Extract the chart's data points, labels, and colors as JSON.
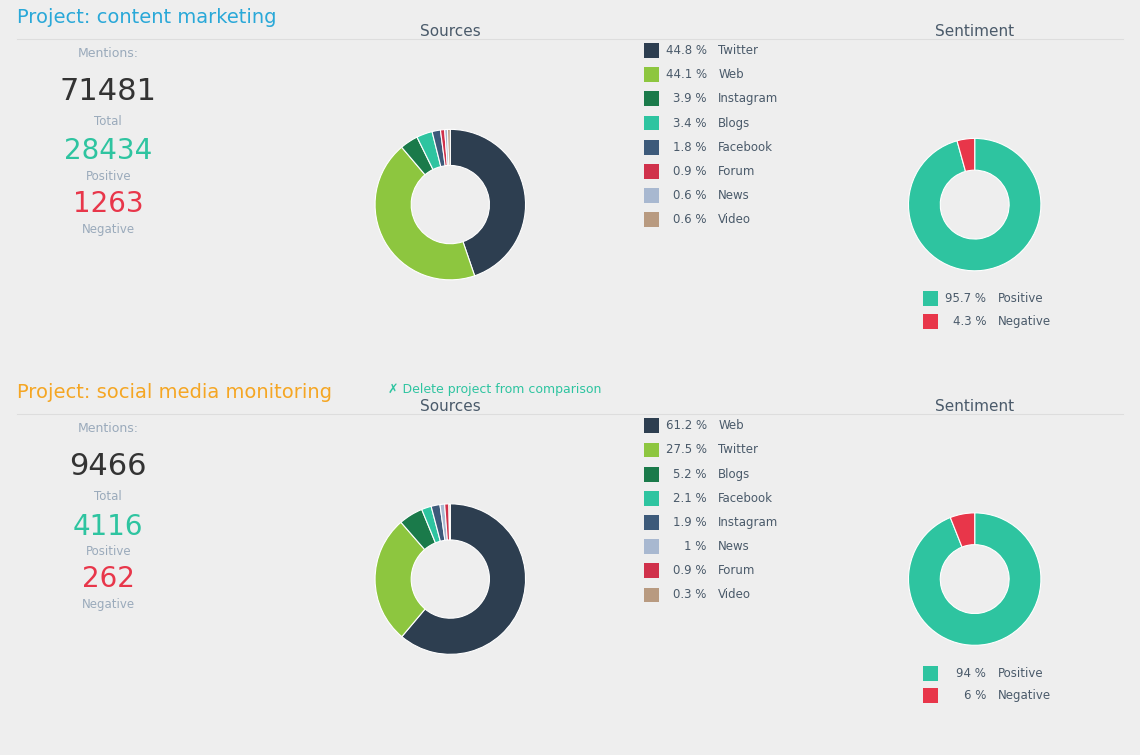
{
  "project1": {
    "title": "Project: content marketing",
    "title_color": "#29a8d8",
    "total": "71481",
    "positive": "28434",
    "negative": "1263",
    "sources_title": "Sources",
    "sources_values": [
      44.8,
      44.1,
      3.9,
      3.4,
      1.8,
      0.9,
      0.6,
      0.6
    ],
    "sources_labels": [
      "Twitter",
      "Web",
      "Instagram",
      "Blogs",
      "Facebook",
      "Forum",
      "News",
      "Video"
    ],
    "sources_percents": [
      "44.8 %",
      "44.1 %",
      "3.9 %",
      "3.4 %",
      "1.8 %",
      "0.9 %",
      "0.6 %",
      "0.6 %"
    ],
    "sources_colors": [
      "#2d3e50",
      "#8dc63f",
      "#1a7a4a",
      "#2ec4a0",
      "#3d5a7a",
      "#d0314b",
      "#a8b8d0",
      "#b89a80"
    ],
    "sentiment_title": "Sentiment",
    "sentiment_values": [
      95.7,
      4.3
    ],
    "sentiment_labels": [
      "Positive",
      "Negative"
    ],
    "sentiment_percents": [
      "95.7 %",
      "4.3 %"
    ],
    "sentiment_colors": [
      "#2ec4a0",
      "#e8364a"
    ]
  },
  "project2": {
    "title": "Project: social media monitoring",
    "title_color": "#f5a623",
    "delete_text": "✗ Delete project from comparison",
    "delete_color": "#2ec4a0",
    "total": "9466",
    "positive": "4116",
    "negative": "262",
    "sources_title": "Sources",
    "sources_values": [
      61.2,
      27.5,
      5.2,
      2.1,
      1.9,
      1.0,
      0.9,
      0.3
    ],
    "sources_labels": [
      "Web",
      "Twitter",
      "Blogs",
      "Facebook",
      "Instagram",
      "News",
      "Forum",
      "Video"
    ],
    "sources_percents": [
      "61.2 %",
      "27.5 %",
      "5.2 %",
      "2.1 %",
      "1.9 %",
      "1 %",
      "0.9 %",
      "0.3 %"
    ],
    "sources_colors": [
      "#2d3e50",
      "#8dc63f",
      "#1a7a4a",
      "#2ec4a0",
      "#3d5a7a",
      "#a8b8d0",
      "#d0314b",
      "#b89a80"
    ],
    "sentiment_title": "Sentiment",
    "sentiment_values": [
      94.0,
      6.0
    ],
    "sentiment_labels": [
      "Positive",
      "Negative"
    ],
    "sentiment_percents": [
      "94 %",
      "6 %"
    ],
    "sentiment_colors": [
      "#2ec4a0",
      "#e8364a"
    ]
  },
  "bg_color": "#eeeeee",
  "panel_color": "#ffffff",
  "text_color": "#4a5a6a",
  "label_color": "#9aaabb",
  "total_color": "#333333",
  "positive_color": "#2ec4a0",
  "negative_color": "#e8364a"
}
